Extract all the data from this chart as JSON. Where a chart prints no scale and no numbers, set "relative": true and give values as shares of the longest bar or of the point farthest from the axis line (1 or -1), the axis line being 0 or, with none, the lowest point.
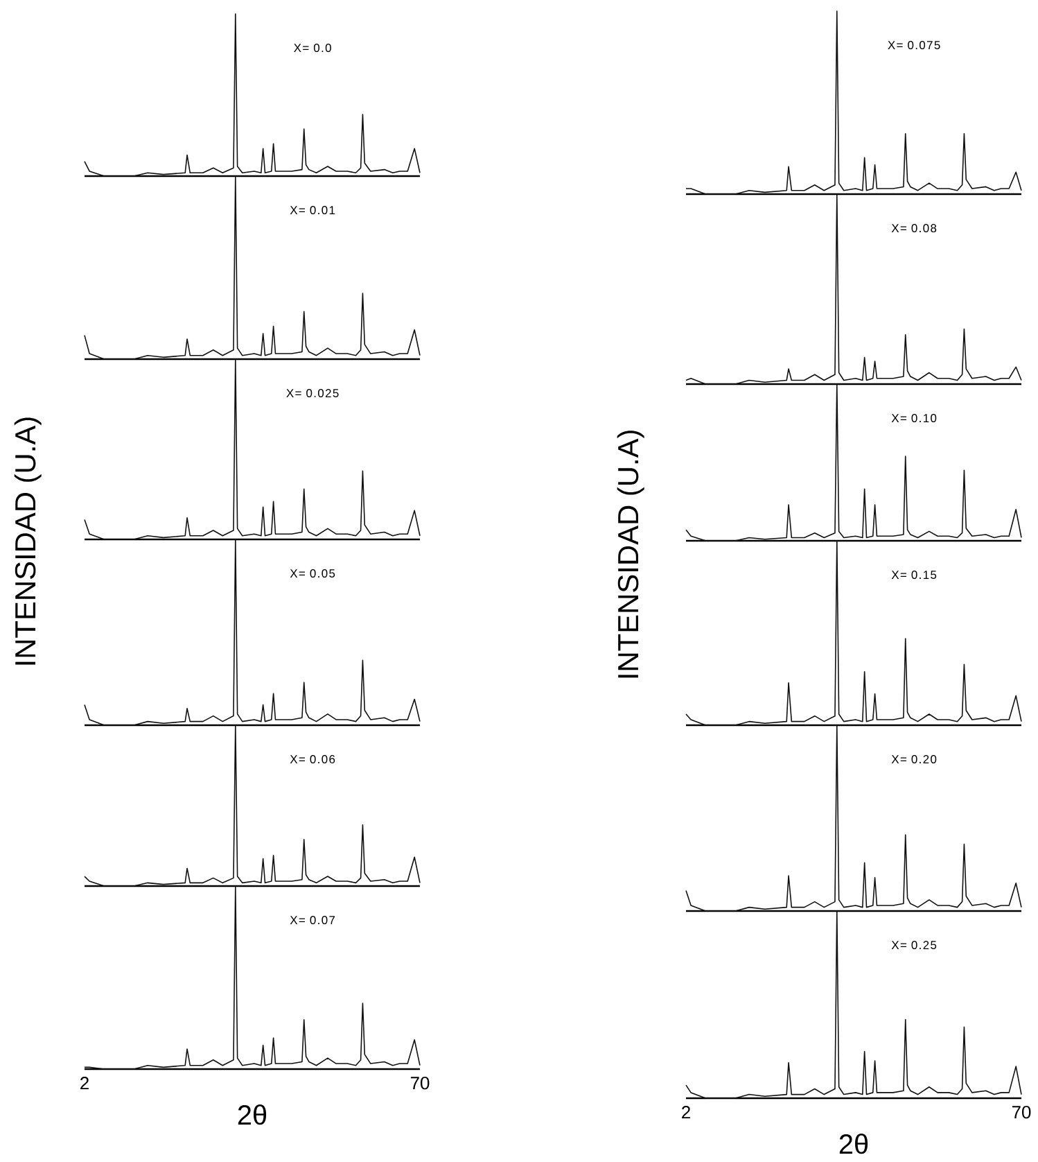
{
  "chart_data": [
    {
      "type": "line",
      "relative": true,
      "title": "X= 0.0",
      "color": "#111111",
      "xlim": [
        2,
        70
      ],
      "xticks": [
        2,
        70
      ],
      "tick_labels": false,
      "x": [
        2,
        3,
        6,
        12,
        14.8,
        18,
        22.4,
        22.8,
        23.4,
        26,
        28.1,
        30,
        32.2,
        32.6,
        33.0,
        34,
        36.4,
        37.8,
        38.2,
        38.6,
        39.9,
        40.3,
        40.7,
        44,
        46.1,
        46.5,
        46.9,
        47.5,
        49,
        51.3,
        53,
        55.3,
        57,
        58.0,
        58.4,
        58.8,
        60,
        62.8,
        64.5,
        65.9,
        67.5,
        68.9,
        70
      ],
      "values": [
        0.09,
        0.03,
        0.0,
        0.0,
        0.02,
        0.01,
        0.02,
        0.13,
        0.02,
        0.02,
        0.05,
        0.02,
        0.05,
        1,
        0.06,
        0.02,
        0.03,
        0.02,
        0.17,
        0.02,
        0.03,
        0.2,
        0.03,
        0.03,
        0.04,
        0.29,
        0.07,
        0.04,
        0.02,
        0.06,
        0.03,
        0.03,
        0.02,
        0.05,
        0.38,
        0.08,
        0.03,
        0.04,
        0.02,
        0.03,
        0.03,
        0.17,
        0.02
      ]
    },
    {
      "type": "line",
      "relative": true,
      "title": "X= 0.01",
      "color": "#111111",
      "xlim": [
        2,
        70
      ],
      "xticks": [
        2,
        70
      ],
      "tick_labels": false,
      "x": [
        2,
        3,
        6,
        12,
        14.8,
        18,
        22.4,
        22.8,
        23.4,
        26,
        28.1,
        30,
        32.2,
        32.6,
        33.0,
        34,
        36.4,
        37.8,
        38.2,
        38.6,
        39.9,
        40.3,
        40.7,
        44,
        46.1,
        46.5,
        46.9,
        47.5,
        49,
        51.3,
        53,
        55.3,
        57,
        58.0,
        58.4,
        58.8,
        60,
        62.8,
        64.5,
        65.9,
        67.5,
        68.9,
        70
      ],
      "values": [
        0.13,
        0.03,
        0.0,
        0.0,
        0.02,
        0.01,
        0.02,
        0.11,
        0.02,
        0.02,
        0.05,
        0.02,
        0.05,
        1,
        0.06,
        0.02,
        0.03,
        0.02,
        0.14,
        0.02,
        0.03,
        0.18,
        0.03,
        0.03,
        0.04,
        0.26,
        0.07,
        0.04,
        0.02,
        0.06,
        0.03,
        0.03,
        0.02,
        0.05,
        0.36,
        0.08,
        0.03,
        0.04,
        0.02,
        0.03,
        0.03,
        0.16,
        0.02
      ]
    },
    {
      "type": "line",
      "relative": true,
      "title": "X= 0.025",
      "ylabel": "INTENSIDAD (U.A)",
      "color": "#111111",
      "xlim": [
        2,
        70
      ],
      "xticks": [
        2,
        70
      ],
      "tick_labels": false,
      "x": [
        2,
        3,
        6,
        12,
        14.8,
        18,
        22.4,
        22.8,
        23.4,
        26,
        28.1,
        30,
        32.2,
        32.6,
        33.0,
        34,
        36.4,
        37.8,
        38.2,
        38.6,
        39.9,
        40.3,
        40.7,
        44,
        46.1,
        46.5,
        46.9,
        47.5,
        49,
        51.3,
        53,
        55.3,
        57,
        58.0,
        58.4,
        58.8,
        60,
        62.8,
        64.5,
        65.9,
        67.5,
        68.9,
        70
      ],
      "values": [
        0.11,
        0.03,
        0.0,
        0.0,
        0.02,
        0.01,
        0.02,
        0.12,
        0.02,
        0.02,
        0.05,
        0.02,
        0.05,
        1,
        0.06,
        0.02,
        0.03,
        0.02,
        0.18,
        0.02,
        0.03,
        0.21,
        0.03,
        0.03,
        0.04,
        0.28,
        0.07,
        0.04,
        0.02,
        0.06,
        0.03,
        0.03,
        0.02,
        0.05,
        0.38,
        0.08,
        0.03,
        0.04,
        0.02,
        0.03,
        0.03,
        0.16,
        0.02
      ]
    },
    {
      "type": "line",
      "relative": true,
      "title": "X= 0.05",
      "color": "#111111",
      "xlim": [
        2,
        70
      ],
      "xticks": [
        2,
        70
      ],
      "tick_labels": false,
      "x": [
        2,
        3,
        6,
        12,
        14.8,
        18,
        22.4,
        22.8,
        23.4,
        26,
        28.1,
        30,
        32.2,
        32.6,
        33.0,
        34,
        36.4,
        37.8,
        38.2,
        38.6,
        39.9,
        40.3,
        40.7,
        44,
        46.1,
        46.5,
        46.9,
        47.5,
        49,
        51.3,
        53,
        55.3,
        57,
        58.0,
        58.4,
        58.8,
        60,
        62.8,
        64.5,
        65.9,
        67.5,
        68.9,
        70
      ],
      "values": [
        0.11,
        0.03,
        0.0,
        0.0,
        0.02,
        0.01,
        0.02,
        0.09,
        0.02,
        0.02,
        0.05,
        0.02,
        0.05,
        1,
        0.06,
        0.02,
        0.03,
        0.02,
        0.11,
        0.02,
        0.03,
        0.17,
        0.03,
        0.03,
        0.04,
        0.23,
        0.07,
        0.04,
        0.02,
        0.06,
        0.03,
        0.03,
        0.02,
        0.05,
        0.35,
        0.08,
        0.03,
        0.04,
        0.02,
        0.03,
        0.03,
        0.14,
        0.02
      ]
    },
    {
      "type": "line",
      "relative": true,
      "title": "X= 0.06",
      "color": "#111111",
      "xlim": [
        2,
        70
      ],
      "xticks": [
        2,
        70
      ],
      "tick_labels": false,
      "x": [
        2,
        3,
        6,
        12,
        14.8,
        18,
        22.4,
        22.8,
        23.4,
        26,
        28.1,
        30,
        32.2,
        32.6,
        33.0,
        34,
        36.4,
        37.8,
        38.2,
        38.6,
        39.9,
        40.3,
        40.7,
        44,
        46.1,
        46.5,
        46.9,
        47.5,
        49,
        51.3,
        53,
        55.3,
        57,
        58.0,
        58.4,
        58.8,
        60,
        62.8,
        64.5,
        65.9,
        67.5,
        68.9,
        70
      ],
      "values": [
        0.06,
        0.03,
        0.0,
        0.0,
        0.02,
        0.01,
        0.02,
        0.11,
        0.02,
        0.02,
        0.05,
        0.02,
        0.05,
        1,
        0.06,
        0.02,
        0.03,
        0.02,
        0.17,
        0.02,
        0.03,
        0.19,
        0.03,
        0.03,
        0.04,
        0.29,
        0.07,
        0.04,
        0.02,
        0.06,
        0.03,
        0.03,
        0.02,
        0.05,
        0.38,
        0.08,
        0.03,
        0.04,
        0.02,
        0.03,
        0.03,
        0.18,
        0.02
      ]
    },
    {
      "type": "line",
      "relative": true,
      "title": "X= 0.07",
      "xlabel": "2θ",
      "color": "#111111",
      "xlim": [
        2,
        70
      ],
      "xticks": [
        2,
        70
      ],
      "tick_labels": "x",
      "x": [
        2,
        3,
        6,
        12,
        14.8,
        18,
        22.4,
        22.8,
        23.4,
        26,
        28.1,
        30,
        32.2,
        32.6,
        33.0,
        34,
        36.4,
        37.8,
        38.2,
        38.6,
        39.9,
        40.3,
        40.7,
        44,
        46.1,
        46.5,
        46.9,
        47.5,
        49,
        51.3,
        53,
        55.3,
        57,
        58.0,
        58.4,
        58.8,
        60,
        62.8,
        64.5,
        65.9,
        67.5,
        68.9,
        70
      ],
      "values": [
        0.01,
        0.01,
        0.0,
        0.0,
        0.02,
        0.01,
        0.02,
        0.11,
        0.02,
        0.02,
        0.05,
        0.02,
        0.05,
        1,
        0.06,
        0.02,
        0.03,
        0.02,
        0.13,
        0.02,
        0.03,
        0.17,
        0.03,
        0.03,
        0.04,
        0.27,
        0.07,
        0.04,
        0.02,
        0.06,
        0.03,
        0.03,
        0.02,
        0.05,
        0.36,
        0.08,
        0.03,
        0.04,
        0.02,
        0.03,
        0.03,
        0.16,
        0.02
      ]
    },
    {
      "type": "line",
      "relative": true,
      "title": "X= 0.075",
      "color": "#111111",
      "xlim": [
        2,
        70
      ],
      "xticks": [
        2,
        70
      ],
      "tick_labels": false,
      "x": [
        2,
        3,
        6,
        12,
        14.8,
        18,
        22.4,
        22.8,
        23.4,
        26,
        28.1,
        30,
        32.2,
        32.6,
        33.0,
        34,
        36.4,
        37.8,
        38.2,
        38.6,
        39.9,
        40.3,
        40.7,
        44,
        46.1,
        46.5,
        46.9,
        47.5,
        49,
        51.3,
        53,
        55.3,
        57,
        58.0,
        58.4,
        58.8,
        60,
        62.8,
        64.5,
        65.9,
        67.5,
        68.9,
        70
      ],
      "values": [
        0.03,
        0.03,
        0.0,
        0.0,
        0.02,
        0.01,
        0.02,
        0.15,
        0.02,
        0.02,
        0.05,
        0.02,
        0.05,
        1,
        0.06,
        0.02,
        0.03,
        0.02,
        0.2,
        0.02,
        0.03,
        0.16,
        0.03,
        0.03,
        0.04,
        0.33,
        0.07,
        0.04,
        0.02,
        0.06,
        0.03,
        0.03,
        0.02,
        0.05,
        0.33,
        0.08,
        0.03,
        0.04,
        0.02,
        0.03,
        0.03,
        0.12,
        0.02
      ]
    },
    {
      "type": "line",
      "relative": true,
      "title": "X= 0.08",
      "color": "#111111",
      "xlim": [
        2,
        70
      ],
      "xticks": [
        2,
        70
      ],
      "tick_labels": false,
      "x": [
        2,
        3,
        6,
        12,
        14.8,
        18,
        22.4,
        22.8,
        23.4,
        26,
        28.1,
        30,
        32.2,
        32.6,
        33.0,
        34,
        36.4,
        37.8,
        38.2,
        38.6,
        39.9,
        40.3,
        40.7,
        44,
        46.1,
        46.5,
        46.9,
        47.5,
        49,
        51.3,
        53,
        55.3,
        57,
        58.0,
        58.4,
        58.8,
        60,
        62.8,
        64.5,
        65.9,
        67.5,
        68.9,
        70
      ],
      "values": [
        0.02,
        0.03,
        0.0,
        0.0,
        0.02,
        0.01,
        0.02,
        0.08,
        0.02,
        0.02,
        0.05,
        0.02,
        0.05,
        1,
        0.06,
        0.02,
        0.03,
        0.02,
        0.14,
        0.02,
        0.03,
        0.12,
        0.03,
        0.03,
        0.04,
        0.26,
        0.07,
        0.04,
        0.02,
        0.06,
        0.03,
        0.03,
        0.02,
        0.05,
        0.29,
        0.08,
        0.03,
        0.04,
        0.02,
        0.03,
        0.03,
        0.09,
        0.02
      ]
    },
    {
      "type": "line",
      "relative": true,
      "title": "X= 0.10",
      "ylabel": "INTENSIDAD (U.A)",
      "color": "#111111",
      "xlim": [
        2,
        70
      ],
      "xticks": [
        2,
        70
      ],
      "tick_labels": false,
      "x": [
        2,
        3,
        6,
        12,
        14.8,
        18,
        22.4,
        22.8,
        23.4,
        26,
        28.1,
        30,
        32.2,
        32.6,
        33.0,
        34,
        36.4,
        37.8,
        38.2,
        38.6,
        39.9,
        40.3,
        40.7,
        44,
        46.1,
        46.5,
        46.9,
        47.5,
        49,
        51.3,
        53,
        55.3,
        57,
        58.0,
        58.4,
        58.8,
        60,
        62.8,
        64.5,
        65.9,
        67.5,
        68.9,
        70
      ],
      "values": [
        0.07,
        0.03,
        0.0,
        0.0,
        0.02,
        0.01,
        0.02,
        0.23,
        0.02,
        0.02,
        0.05,
        0.02,
        0.05,
        1,
        0.06,
        0.02,
        0.03,
        0.02,
        0.33,
        0.02,
        0.03,
        0.23,
        0.03,
        0.03,
        0.04,
        0.54,
        0.07,
        0.04,
        0.02,
        0.06,
        0.03,
        0.03,
        0.02,
        0.05,
        0.45,
        0.08,
        0.03,
        0.04,
        0.02,
        0.03,
        0.03,
        0.2,
        0.02
      ]
    },
    {
      "type": "line",
      "relative": true,
      "title": "X= 0.15",
      "color": "#111111",
      "xlim": [
        2,
        70
      ],
      "xticks": [
        2,
        70
      ],
      "tick_labels": false,
      "x": [
        2,
        3,
        6,
        12,
        14.8,
        18,
        22.4,
        22.8,
        23.4,
        26,
        28.1,
        30,
        32.2,
        32.6,
        33.0,
        34,
        36.4,
        37.8,
        38.2,
        38.6,
        39.9,
        40.3,
        40.7,
        44,
        46.1,
        46.5,
        46.9,
        47.5,
        49,
        51.3,
        53,
        55.3,
        57,
        58.0,
        58.4,
        58.8,
        60,
        62.8,
        64.5,
        65.9,
        67.5,
        68.9,
        70
      ],
      "values": [
        0.06,
        0.03,
        0.0,
        0.0,
        0.02,
        0.01,
        0.02,
        0.23,
        0.02,
        0.02,
        0.05,
        0.02,
        0.05,
        1,
        0.06,
        0.02,
        0.03,
        0.02,
        0.29,
        0.02,
        0.03,
        0.17,
        0.03,
        0.03,
        0.04,
        0.47,
        0.07,
        0.04,
        0.02,
        0.06,
        0.03,
        0.03,
        0.02,
        0.05,
        0.33,
        0.08,
        0.03,
        0.04,
        0.02,
        0.03,
        0.03,
        0.16,
        0.02
      ]
    },
    {
      "type": "line",
      "relative": true,
      "title": "X= 0.20",
      "color": "#111111",
      "xlim": [
        2,
        70
      ],
      "xticks": [
        2,
        70
      ],
      "tick_labels": false,
      "x": [
        2,
        3,
        6,
        12,
        14.8,
        18,
        22.4,
        22.8,
        23.4,
        26,
        28.1,
        30,
        32.2,
        32.6,
        33.0,
        34,
        36.4,
        37.8,
        38.2,
        38.6,
        39.9,
        40.3,
        40.7,
        44,
        46.1,
        46.5,
        46.9,
        47.5,
        49,
        51.3,
        53,
        55.3,
        57,
        58.0,
        58.4,
        58.8,
        60,
        62.8,
        64.5,
        65.9,
        67.5,
        68.9,
        70
      ],
      "values": [
        0.11,
        0.03,
        0.0,
        0.0,
        0.02,
        0.01,
        0.02,
        0.19,
        0.02,
        0.02,
        0.05,
        0.02,
        0.05,
        1,
        0.06,
        0.02,
        0.03,
        0.02,
        0.26,
        0.02,
        0.03,
        0.18,
        0.03,
        0.03,
        0.04,
        0.41,
        0.07,
        0.04,
        0.02,
        0.06,
        0.03,
        0.03,
        0.02,
        0.05,
        0.36,
        0.08,
        0.03,
        0.04,
        0.02,
        0.03,
        0.03,
        0.15,
        0.02
      ]
    },
    {
      "type": "line",
      "relative": true,
      "title": "X= 0.25",
      "xlabel": "2θ",
      "color": "#111111",
      "xlim": [
        2,
        70
      ],
      "xticks": [
        2,
        70
      ],
      "tick_labels": "x",
      "x": [
        2,
        3,
        6,
        12,
        14.8,
        18,
        22.4,
        22.8,
        23.4,
        26,
        28.1,
        30,
        32.2,
        32.6,
        33.0,
        34,
        36.4,
        37.8,
        38.2,
        38.6,
        39.9,
        40.3,
        40.7,
        44,
        46.1,
        46.5,
        46.9,
        47.5,
        49,
        51.3,
        53,
        55.3,
        57,
        58.0,
        58.4,
        58.8,
        60,
        62.8,
        64.5,
        65.9,
        67.5,
        68.9,
        70
      ],
      "values": [
        0.07,
        0.03,
        0.0,
        0.0,
        0.02,
        0.01,
        0.02,
        0.19,
        0.02,
        0.02,
        0.05,
        0.02,
        0.05,
        1,
        0.06,
        0.02,
        0.03,
        0.02,
        0.25,
        0.02,
        0.03,
        0.2,
        0.03,
        0.03,
        0.04,
        0.42,
        0.07,
        0.04,
        0.02,
        0.06,
        0.03,
        0.03,
        0.02,
        0.05,
        0.38,
        0.08,
        0.03,
        0.04,
        0.02,
        0.03,
        0.03,
        0.17,
        0.02
      ]
    }
  ]
}
